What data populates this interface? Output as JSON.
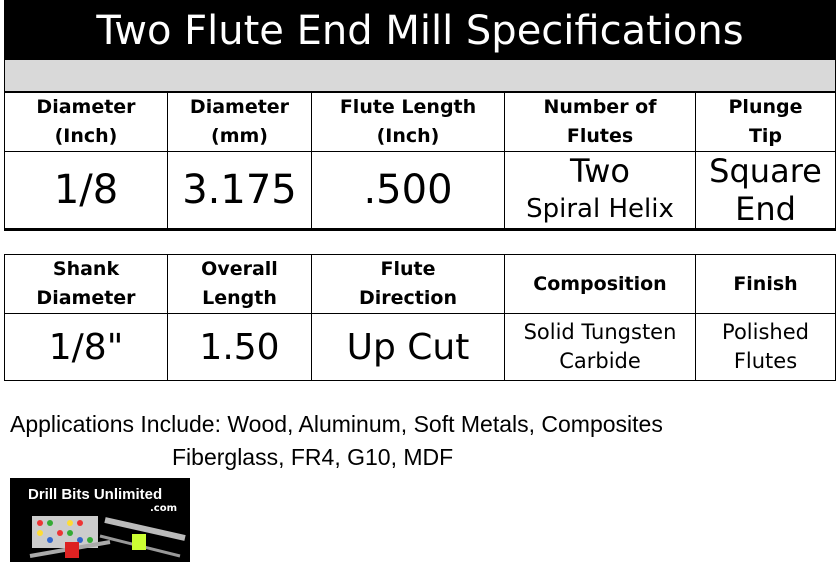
{
  "title": "Two Flute End Mill Specifications",
  "table1": {
    "headers": [
      "Diameter\n(Inch)",
      "Diameter\n(mm)",
      "Flute Length\n(Inch)",
      "Number of\nFlutes",
      "Plunge\nTip"
    ],
    "values": [
      "1/8",
      "3.175",
      ".500"
    ],
    "flutes_main": "Two",
    "flutes_sub": "Spiral Helix",
    "tip_main": "Square",
    "tip_sub": "End"
  },
  "table2": {
    "headers": [
      "Shank\nDiameter",
      "Overall\nLength",
      "Flute\nDirection",
      "Composition",
      "Finish"
    ],
    "values": [
      "1/8\"",
      "1.50",
      "Up Cut",
      "Solid Tungsten\nCarbide",
      "Polished\nFlutes"
    ]
  },
  "applications": {
    "line1": "Applications Include: Wood, Aluminum, Soft Metals, Composites",
    "line2": "Fiberglass, FR4, G10, MDF"
  },
  "logo": {
    "text": "Drill Bits Unlimited",
    "sub": ".com"
  }
}
